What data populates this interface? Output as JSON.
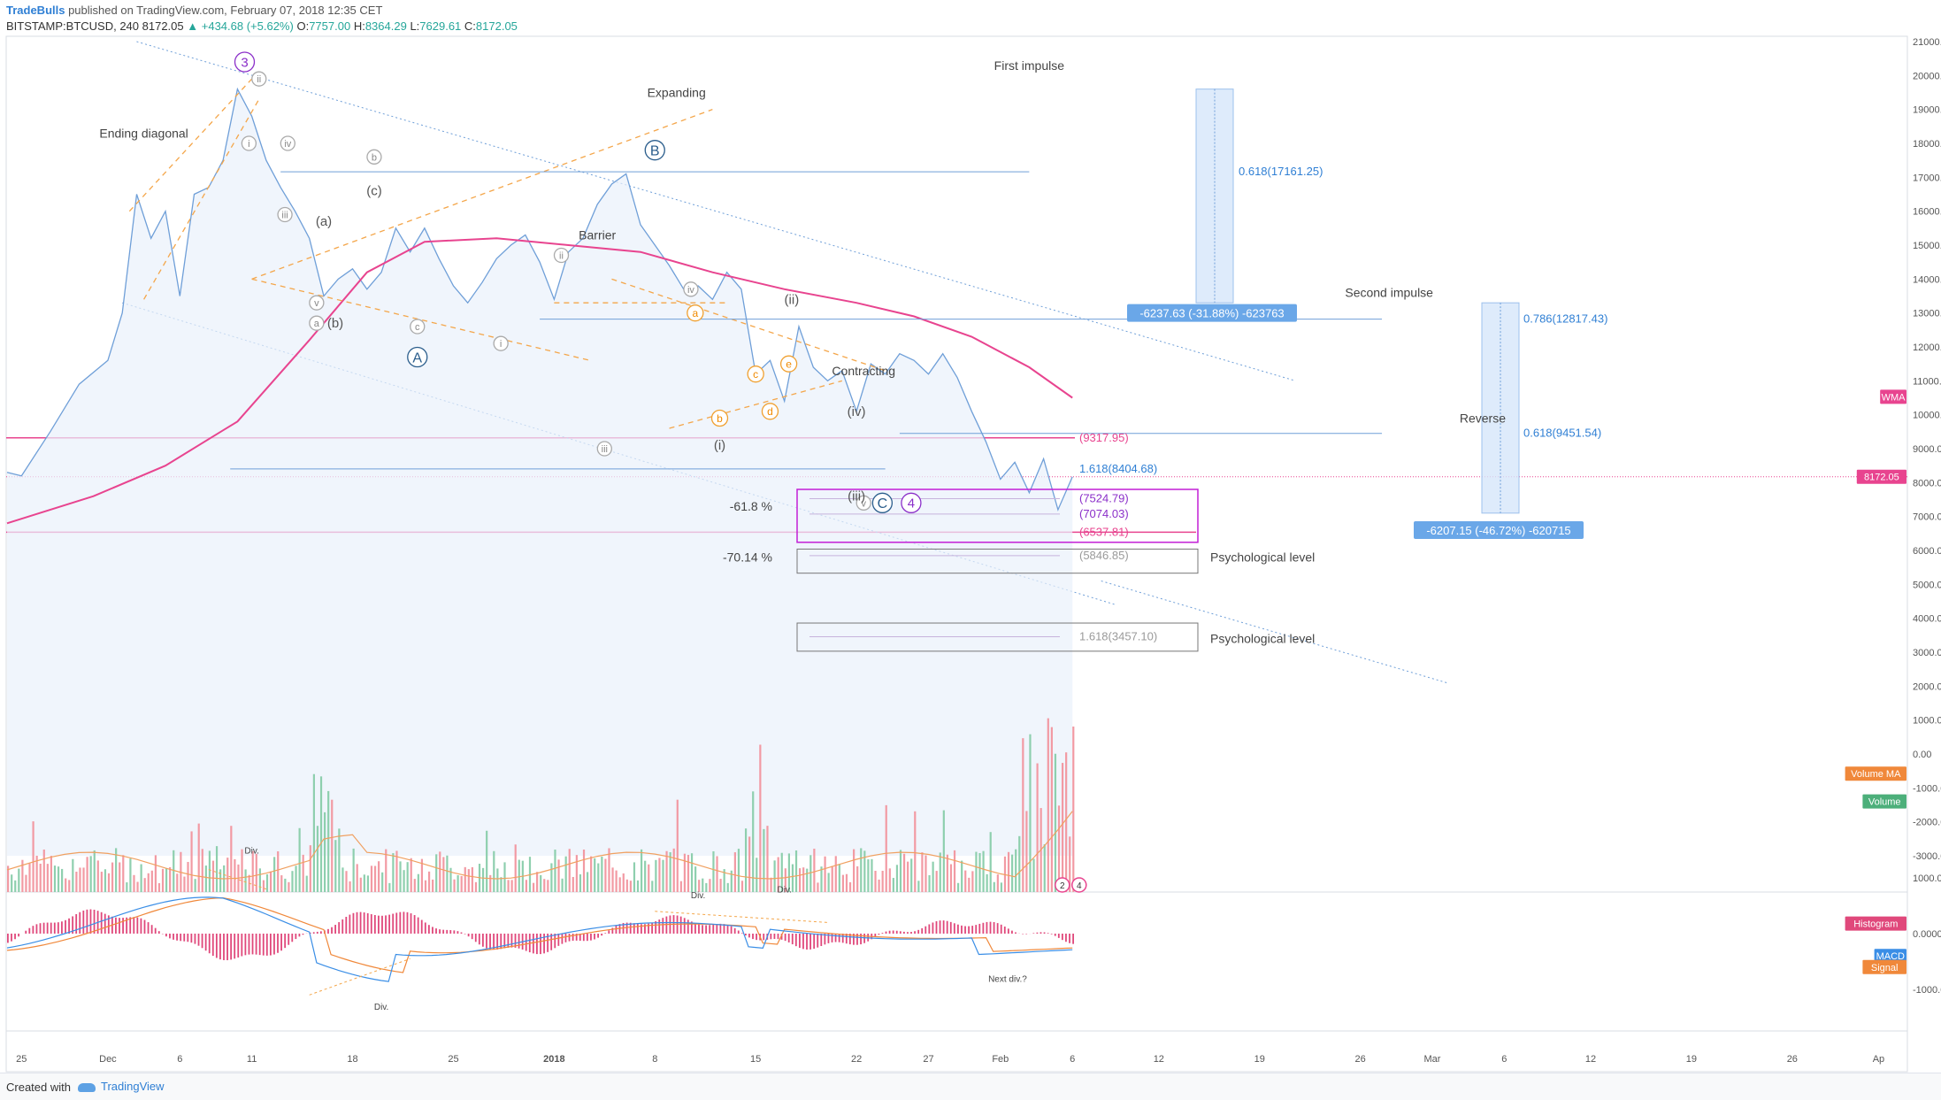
{
  "header": {
    "author": "TradeBulls",
    "published": " published on TradingView.com, February 07, 2018 12:35 CET",
    "symbol": "BITSTAMP:BTCUSD, 240",
    "last": "8172.05",
    "change": "▲ +434.68 (+5.62%)",
    "o_label": "O:",
    "o_val": "7757.00",
    "h_label": "H:",
    "h_val": "8364.29",
    "l_label": "L:",
    "l_val": "7629.61",
    "c_label": "C:",
    "c_val": "8172.05"
  },
  "footer": {
    "created": "Created with",
    "brand": "TradingView"
  },
  "colors": {
    "price": "#6f9fd8",
    "wma": "#e8448f",
    "volume_up": "#8ecfae",
    "volume_down": "#f29aa3",
    "macd": "#3a8ee6",
    "signal": "#f0883a",
    "hist": "#e0487b",
    "accent": "#2f7fd4"
  },
  "chart_data": {
    "type": "line",
    "title": "BITSTAMP:BTCUSD, 240",
    "price_axis": {
      "ticks": [
        21000,
        20000,
        19000,
        18000,
        17000,
        16000,
        15000,
        14000,
        13000,
        12000,
        11000,
        10000,
        9000,
        8000,
        7000,
        6000,
        5000,
        4000,
        3000,
        2000,
        1000,
        0,
        -1000,
        -2000,
        -3000
      ],
      "labels": [
        "21000.00",
        "20000.00",
        "19000.00",
        "18000.00",
        "17000.00",
        "16000.00",
        "15000.00",
        "14000.00",
        "13000.00",
        "12000.00",
        "11000.00",
        "10000.00",
        "9000.00",
        "8000.00",
        "7000.00",
        "6000.00",
        "5000.00",
        "4000.00",
        "3000.00",
        "2000.00",
        "1000.00",
        "0.00",
        "-1000.00",
        "-2000.00",
        "-3000.00"
      ]
    },
    "macd_axis": {
      "ticks": [
        1000,
        0,
        -1000
      ],
      "labels": [
        "1000.0000",
        "0.0000",
        "-1000.0000"
      ]
    },
    "x_axis": {
      "labels": [
        "25",
        "Dec",
        "6",
        "11",
        "18",
        "25",
        "2018",
        "8",
        "15",
        "22",
        "27",
        "Feb",
        "6",
        "12",
        "19",
        "26",
        "Mar",
        "6",
        "12",
        "19",
        "26",
        "Ap"
      ],
      "day_offsets": [
        0,
        6,
        11,
        16,
        23,
        30,
        37,
        44,
        51,
        58,
        63,
        68,
        73,
        79,
        86,
        93,
        98,
        103,
        109,
        116,
        123,
        129
      ]
    },
    "x_range_days": [
      -1,
      131
    ],
    "price_series": {
      "name": "BTCUSD",
      "days": [
        -1,
        0,
        2,
        4,
        6,
        7,
        8,
        9,
        10,
        11,
        12,
        13,
        14,
        15,
        16,
        17,
        18,
        19,
        20,
        21,
        22,
        23,
        24,
        25,
        26,
        27,
        28,
        29,
        30,
        31,
        32,
        33,
        34,
        35,
        36,
        37,
        38,
        39,
        40,
        41,
        42,
        43,
        44,
        45,
        46,
        47,
        48,
        49,
        50,
        51,
        52,
        53,
        54,
        55,
        56,
        57,
        58,
        59,
        60,
        61,
        62,
        63,
        64,
        65,
        66,
        67,
        68,
        69,
        70,
        71,
        72,
        73
      ],
      "values": [
        8300,
        8200,
        9500,
        10900,
        11600,
        13000,
        16500,
        15200,
        16000,
        13500,
        16500,
        16700,
        17500,
        19600,
        18800,
        17500,
        16700,
        16000,
        15200,
        13500,
        14000,
        14300,
        13700,
        14200,
        15500,
        14800,
        15500,
        14600,
        13800,
        13300,
        13900,
        14600,
        15000,
        15300,
        14500,
        13400,
        14800,
        15200,
        16200,
        16800,
        17100,
        15600,
        15000,
        14400,
        13700,
        13800,
        13400,
        14200,
        13700,
        11200,
        11600,
        10400,
        12600,
        11400,
        11000,
        11300,
        10100,
        11500,
        11200,
        11800,
        11600,
        11200,
        11800,
        11100,
        10100,
        9200,
        8100,
        8600,
        7700,
        8700,
        7200,
        8172
      ]
    },
    "wma": {
      "name": "WMA",
      "days": [
        -1,
        5,
        10,
        15,
        20,
        24,
        28,
        33,
        38,
        43,
        48,
        53,
        58,
        62,
        66,
        70,
        73
      ],
      "values": [
        6800,
        7600,
        8500,
        9800,
        12200,
        14200,
        15100,
        15200,
        15000,
        14800,
        14200,
        13700,
        13300,
        12900,
        12300,
        11400,
        10500
      ]
    },
    "volume": {
      "name": "Volume",
      "ma_name": "Volume MA"
    },
    "macd": {
      "name": "MACD",
      "signal_name": "Signal",
      "histogram_name": "Histogram"
    },
    "annotations": {
      "wave_labels": [
        {
          "text": "3",
          "day": 15.5,
          "price": 20400,
          "style": "circle-purple"
        },
        {
          "text": "ii",
          "day": 16.5,
          "price": 19900,
          "style": "circle-gray"
        },
        {
          "text": "i",
          "day": 15.8,
          "price": 18000,
          "style": "circle-gray"
        },
        {
          "text": "iv",
          "day": 18.5,
          "price": 18000,
          "style": "circle-gray"
        },
        {
          "text": "iii",
          "day": 18.3,
          "price": 15900,
          "style": "circle-gray"
        },
        {
          "text": "v",
          "day": 20.5,
          "price": 13300,
          "style": "circle-gray"
        },
        {
          "text": "a",
          "day": 20.5,
          "price": 12700,
          "style": "circle-gray"
        },
        {
          "text": "b",
          "day": 24.5,
          "price": 17600,
          "style": "circle-gray"
        },
        {
          "text": "c",
          "day": 27.5,
          "price": 12600,
          "style": "circle-gray"
        },
        {
          "text": "B",
          "day": 44,
          "price": 17800,
          "style": "circle-blue"
        },
        {
          "text": "A",
          "day": 27.5,
          "price": 11700,
          "style": "circle-blue"
        },
        {
          "text": "ii",
          "day": 37.5,
          "price": 14700,
          "style": "circle-gray"
        },
        {
          "text": "iv",
          "day": 46.5,
          "price": 13700,
          "style": "circle-gray"
        },
        {
          "text": "i",
          "day": 33.3,
          "price": 12100,
          "style": "circle-gray"
        },
        {
          "text": "iii",
          "day": 40.5,
          "price": 9000,
          "style": "circle-gray"
        },
        {
          "text": "v",
          "day": 58.5,
          "price": 7400,
          "style": "circle-gray"
        },
        {
          "text": "C",
          "day": 59.8,
          "price": 7400,
          "style": "circle-blue"
        },
        {
          "text": "4",
          "day": 61.8,
          "price": 7400,
          "style": "circle-purple"
        },
        {
          "text": "a",
          "day": 46.8,
          "price": 13000,
          "style": "circle-orange"
        },
        {
          "text": "b",
          "day": 48.5,
          "price": 9900,
          "style": "circle-orange"
        },
        {
          "text": "c",
          "day": 51,
          "price": 11200,
          "style": "circle-orange"
        },
        {
          "text": "d",
          "day": 52,
          "price": 10100,
          "style": "circle-orange"
        },
        {
          "text": "e",
          "day": 53.3,
          "price": 11500,
          "style": "circle-orange"
        }
      ],
      "plain_labels": [
        {
          "text": "(a)",
          "day": 21,
          "price": 15700
        },
        {
          "text": "(b)",
          "day": 21.8,
          "price": 12700
        },
        {
          "text": "(c)",
          "day": 24.5,
          "price": 16600
        },
        {
          "text": "(ii)",
          "day": 53.5,
          "price": 13400
        },
        {
          "text": "(i)",
          "day": 48.5,
          "price": 9100
        },
        {
          "text": "(iii)",
          "day": 58,
          "price": 7600
        },
        {
          "text": "(iv)",
          "day": 58,
          "price": 10100
        }
      ],
      "text_notes": [
        {
          "text": "Ending diagonal",
          "day": 8.5,
          "price": 18300
        },
        {
          "text": "Expanding",
          "day": 45.5,
          "price": 19500
        },
        {
          "text": "Barrier",
          "day": 40,
          "price": 15300
        },
        {
          "text": "Contracting",
          "day": 58.5,
          "price": 11300
        },
        {
          "text": "First impulse",
          "day": 70,
          "price": 20300
        },
        {
          "text": "Second impulse",
          "day": 95,
          "price": 13600
        },
        {
          "text": "Reverse",
          "day": 101.5,
          "price": 9900
        },
        {
          "text": "Psychological level",
          "day": 71,
          "price": 5800
        },
        {
          "text": "Psychological level",
          "day": 71,
          "price": 3400
        }
      ],
      "fib_percent": [
        {
          "text": "-61.8 %",
          "day": 40,
          "price": 7300
        },
        {
          "text": "-70.14 %",
          "day": 40,
          "price": 5800
        }
      ],
      "fib_levels": [
        {
          "text": "(9317.95)",
          "price": 9317.95,
          "color": "#e8448f"
        },
        {
          "text": "1.618(8404.68)",
          "price": 8404.68,
          "color": "#2f7fd4"
        },
        {
          "text": "(7524.79)",
          "price": 7524.79,
          "color": "#8b2fc9"
        },
        {
          "text": "(7074.03)",
          "price": 7074.03,
          "color": "#8b2fc9"
        },
        {
          "text": "(6537.81)",
          "price": 6537.81,
          "color": "#e8448f"
        },
        {
          "text": "(5846.85)",
          "price": 5846.85,
          "color": "#9a9a9a"
        },
        {
          "text": "1.618(3457.10)",
          "price": 3457.1,
          "color": "#9a9a9a"
        }
      ],
      "projections": [
        {
          "text": "0.618(17161.25)",
          "price": 17161.25
        },
        {
          "text": "0.786(12817.43)",
          "price": 12817.43
        },
        {
          "text": "0.618(9451.54)",
          "price": 9451.54
        }
      ],
      "measure_badges": [
        {
          "text": "-6237.63 (-31.88%) -623763",
          "day": 69.5,
          "price": 13000
        },
        {
          "text": "-6207.15 (-46.72%) -620715",
          "day": 96.5,
          "price": 6700
        }
      ],
      "indicator_tags": [
        {
          "text": "WMA"
        },
        {
          "text": "8172.05"
        },
        {
          "text": "Volume MA"
        },
        {
          "text": "Volume"
        },
        {
          "text": "Histogram"
        },
        {
          "text": "MACD"
        },
        {
          "text": "Signal"
        }
      ],
      "divergence_labels": [
        {
          "text": "Div.",
          "day": 16,
          "macd": 1500
        },
        {
          "text": "Div.",
          "day": 25,
          "macd": -1300
        },
        {
          "text": "Div.",
          "day": 47,
          "macd": 700
        },
        {
          "text": "Div.",
          "day": 53,
          "macd": 800
        },
        {
          "text": "Next div.?",
          "day": 68.5,
          "macd": -800
        }
      ],
      "event_marks": [
        {
          "text": "2"
        },
        {
          "text": "4"
        }
      ]
    }
  }
}
